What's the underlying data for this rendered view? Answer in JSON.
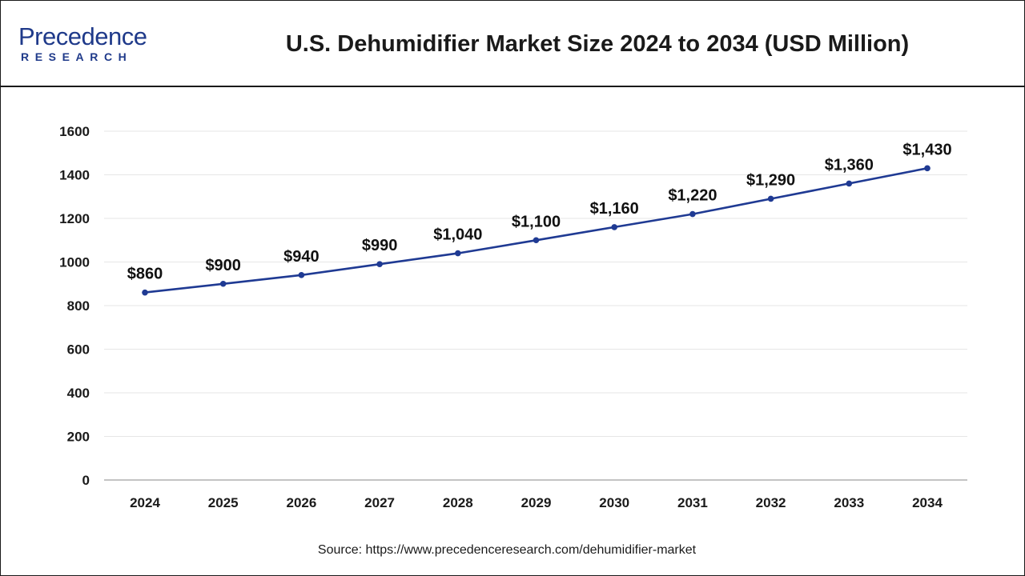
{
  "header": {
    "logo_main": "Precedence",
    "logo_sub": "RESEARCH",
    "title": "U.S. Dehumidifier Market Size 2024 to 2034 (USD Million)"
  },
  "source": "Source: https://www.precedenceresearch.com/dehumidifier-market",
  "colors": {
    "line": "#1f3a93",
    "brand": "#1f3a8a",
    "grid": "#e6e6e6"
  },
  "chart_data": {
    "type": "line",
    "title": "U.S. Dehumidifier Market Size 2024 to 2034 (USD Million)",
    "categories": [
      "2024",
      "2025",
      "2026",
      "2027",
      "2028",
      "2029",
      "2030",
      "2031",
      "2032",
      "2033",
      "2034"
    ],
    "series": [
      {
        "values": [
          860,
          900,
          940,
          990,
          1040,
          1100,
          1160,
          1220,
          1290,
          1360,
          1430
        ],
        "labels": [
          "$860",
          "$900",
          "$940",
          "$990",
          "$1,040",
          "$1,100",
          "$1,160",
          "$1,220",
          "$1,290",
          "$1,360",
          "$1,430"
        ]
      }
    ],
    "yticks": [
      "0",
      "200",
      "400",
      "600",
      "800",
      "1000",
      "1200",
      "1400",
      "1600"
    ],
    "ylim": [
      0,
      1600
    ],
    "xlabel": "",
    "ylabel": "",
    "grid": true,
    "legend": "none"
  }
}
